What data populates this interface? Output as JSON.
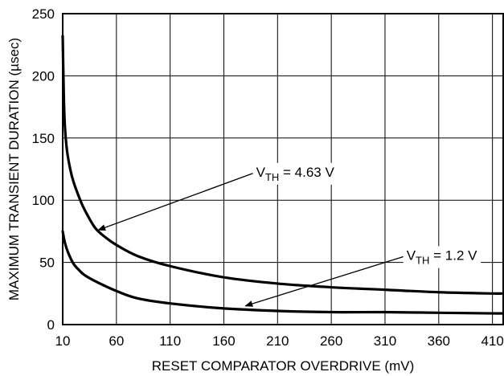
{
  "chart_data": {
    "type": "line",
    "xlabel": "RESET COMPARATOR OVERDRIVE (mV)",
    "ylabel": "MAXIMUM TRANSIENT DURATION (µsec)",
    "xlim": [
      10,
      420
    ],
    "ylim": [
      0,
      250
    ],
    "x_ticks": [
      "10",
      "60",
      "110",
      "160",
      "210",
      "260",
      "310",
      "360",
      "410"
    ],
    "y_ticks": [
      "0",
      "50",
      "100",
      "150",
      "200",
      "250"
    ],
    "grid": true,
    "series": [
      {
        "label_main": "V",
        "label_sub": "TH",
        "label_rest": " = 4.63 V",
        "x": [
          10,
          11,
          12,
          14,
          17,
          20,
          25,
          30,
          40,
          50,
          60,
          80,
          110,
          160,
          210,
          260,
          310,
          360,
          410,
          420
        ],
        "y": [
          232,
          185,
          160,
          140,
          125,
          115,
          103,
          93,
          78,
          70,
          64,
          55,
          47,
          38,
          33,
          30,
          28,
          26,
          25,
          25
        ]
      },
      {
        "label_main": "V",
        "label_sub": "TH",
        "label_rest": " = 1.2 V",
        "x": [
          10,
          12,
          15,
          20,
          25,
          30,
          40,
          60,
          80,
          110,
          160,
          210,
          260,
          310,
          360,
          410,
          420
        ],
        "y": [
          75,
          66,
          58,
          49,
          44,
          40,
          35,
          27,
          21,
          17,
          13,
          11,
          10,
          10,
          9.5,
          9,
          9
        ]
      }
    ],
    "annotations": [
      {
        "series": 0,
        "text_x": 190,
        "text_y": 119,
        "arrow_to": [
          43,
          76
        ]
      },
      {
        "series": 1,
        "text_x": 330,
        "text_y": 52,
        "arrow_to": [
          180,
          15
        ]
      }
    ]
  }
}
